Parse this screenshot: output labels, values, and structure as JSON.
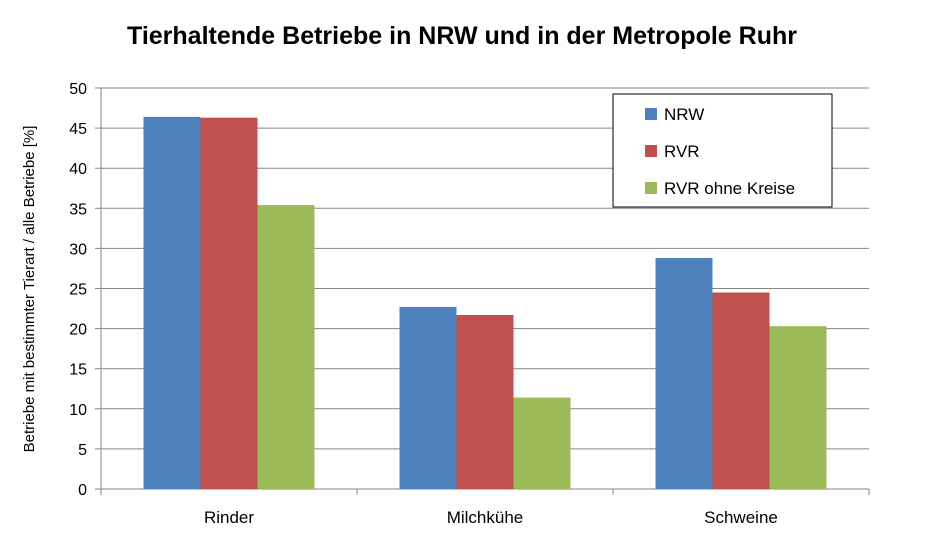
{
  "chart_data": {
    "type": "bar",
    "title": "Tierhaltende Betriebe in NRW und in der Metropole Ruhr",
    "xlabel": "",
    "ylabel": "Betriebe mit bestimmter Tierart / alle Betriebe [%]",
    "categories": [
      "Rinder",
      "Milchkühe",
      "Schweine"
    ],
    "series": [
      {
        "name": "NRW",
        "color": "#4F81BD",
        "values": [
          46.4,
          22.7,
          28.8
        ]
      },
      {
        "name": "RVR",
        "color": "#C0504D",
        "values": [
          46.3,
          21.7,
          24.5
        ]
      },
      {
        "name": "RVR ohne Kreise",
        "color": "#9BBB59",
        "values": [
          35.4,
          11.4,
          20.3
        ]
      }
    ],
    "ylim": [
      0,
      50
    ],
    "yticks": [
      0,
      5,
      10,
      15,
      20,
      25,
      30,
      35,
      40,
      45,
      50
    ],
    "grid": true,
    "legend_position": "top-right"
  }
}
